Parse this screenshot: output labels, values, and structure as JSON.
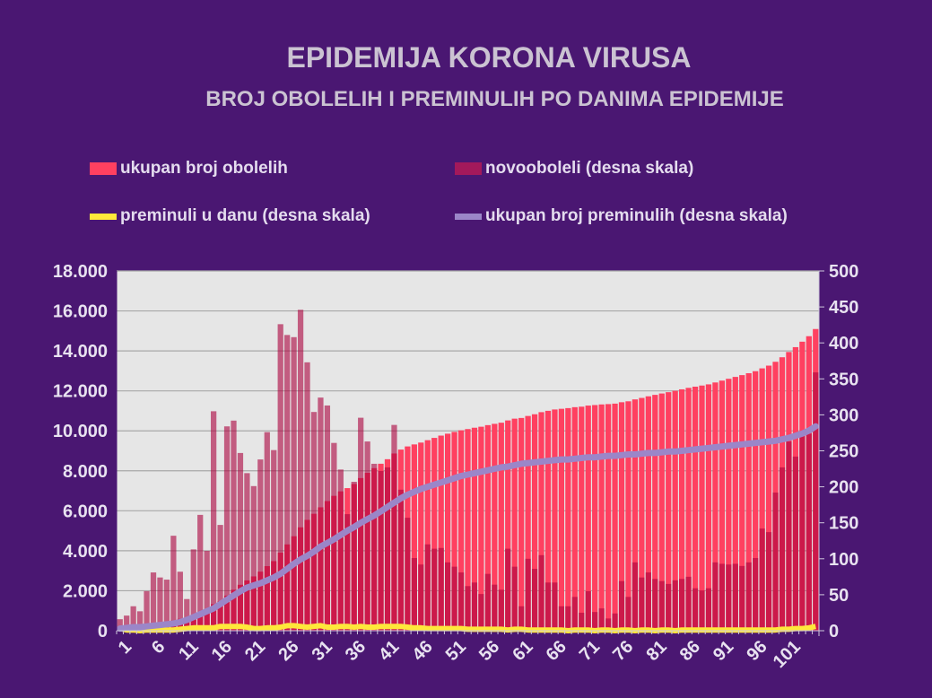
{
  "chart_data": {
    "type": "bar",
    "title": "EPIDEMIJA KORONA VIRUSA",
    "subtitle": "BROJ OBOLELIH I PREMINULIH PO DANIMA EPIDEMIJE",
    "legend_position": "top",
    "grid": true,
    "x": {
      "range": [
        1,
        105
      ],
      "tick_step": 5,
      "ticks": [
        "1",
        "6",
        "11",
        "16",
        "21",
        "26",
        "31",
        "36",
        "41",
        "46",
        "51",
        "56",
        "61",
        "66",
        "71",
        "76",
        "81",
        "86",
        "91",
        "96",
        "101"
      ]
    },
    "y_left": {
      "range": [
        0,
        18000
      ],
      "ticks": [
        "0",
        "2.000",
        "4.000",
        "6.000",
        "8.000",
        "10.000",
        "12.000",
        "14.000",
        "16.000",
        "18.000"
      ]
    },
    "y_right": {
      "range": [
        0,
        500
      ],
      "ticks": [
        "0",
        "50",
        "100",
        "150",
        "200",
        "250",
        "300",
        "350",
        "400",
        "450",
        "500"
      ]
    },
    "series": [
      {
        "name": "ukupan broj obolelih",
        "axis": "left",
        "type": "bar",
        "color": "#ff4060",
        "values": [
          16,
          37,
          71,
          98,
          153,
          234,
          308,
          379,
          511,
          593,
          637,
          750,
          911,
          1022,
          1327,
          1474,
          1758,
          2050,
          2297,
          2516,
          2717,
          2955,
          3231,
          3482,
          3908,
          4319,
          4727,
          5173,
          5546,
          5850,
          6174,
          6487,
          6748,
          6972,
          7134,
          7341,
          7637,
          7900,
          8132,
          8354,
          8581,
          8867,
          9063,
          9220,
          9321,
          9413,
          9533,
          9647,
          9762,
          9857,
          9946,
          10027,
          10089,
          10156,
          10207,
          10286,
          10350,
          10407,
          10521,
          10610,
          10644,
          10744,
          10830,
          10935,
          11002,
          11069,
          11103,
          11137,
          11184,
          11209,
          11264,
          11290,
          11321,
          11338,
          11362,
          11431,
          11478,
          11573,
          11647,
          11728,
          11800,
          11869,
          11934,
          12004,
          12076,
          12151,
          12210,
          12266,
          12325,
          12420,
          12513,
          12605,
          12698,
          12788,
          12883,
          12984,
          13126,
          13263,
          13455,
          13682,
          13945,
          14187,
          14461,
          14735,
          15094
        ]
      },
      {
        "name": "novooboleli (desna skala)",
        "axis": "right",
        "type": "bar",
        "color": "#aa003c",
        "values": [
          16,
          21,
          34,
          27,
          55,
          81,
          74,
          71,
          132,
          82,
          44,
          113,
          161,
          111,
          305,
          147,
          284,
          292,
          247,
          219,
          201,
          238,
          276,
          251,
          426,
          411,
          408,
          446,
          373,
          304,
          324,
          313,
          261,
          224,
          162,
          207,
          296,
          263,
          232,
          222,
          227,
          286,
          196,
          157,
          101,
          92,
          120,
          114,
          115,
          95,
          89,
          81,
          62,
          67,
          51,
          79,
          64,
          57,
          114,
          89,
          34,
          100,
          86,
          105,
          67,
          67,
          34,
          34,
          47,
          25,
          55,
          26,
          31,
          17,
          24,
          69,
          47,
          95,
          74,
          81,
          72,
          69,
          65,
          70,
          72,
          75,
          59,
          56,
          59,
          95,
          93,
          92,
          93,
          90,
          95,
          101,
          142,
          137,
          192,
          227,
          263,
          242,
          274,
          274,
          359
        ]
      },
      {
        "name": "preminuli u danu (desna skala)",
        "axis": "right",
        "type": "line",
        "color": "#ffe83a",
        "values": [
          3,
          1,
          1,
          0,
          1,
          1,
          1,
          1,
          1,
          2,
          3,
          4,
          4,
          4,
          4,
          6,
          6,
          6,
          6,
          5,
          3,
          3,
          4,
          4,
          5,
          7,
          7,
          6,
          5,
          6,
          7,
          5,
          5,
          6,
          6,
          5,
          6,
          5,
          5,
          6,
          6,
          6,
          6,
          5,
          4,
          4,
          3,
          3,
          3,
          3,
          3,
          3,
          2,
          2,
          2,
          2,
          2,
          2,
          1,
          2,
          2,
          1,
          1,
          1,
          1,
          1,
          1,
          0,
          1,
          1,
          1,
          0,
          1,
          1,
          0,
          1,
          1,
          0,
          1,
          1,
          0,
          1,
          1,
          0,
          1,
          1,
          1,
          1,
          1,
          1,
          1,
          1,
          1,
          1,
          1,
          1,
          1,
          1,
          1,
          2,
          2,
          3,
          3,
          4,
          6
        ]
      },
      {
        "name": "ukupan broj preminulih (desna skala)",
        "axis": "right",
        "type": "line",
        "color": "#9b86c8",
        "values": [
          3,
          4,
          5,
          5,
          6,
          7,
          8,
          9,
          10,
          12,
          15,
          19,
          23,
          27,
          31,
          37,
          43,
          49,
          55,
          60,
          63,
          66,
          70,
          74,
          79,
          86,
          93,
          99,
          104,
          110,
          117,
          122,
          127,
          133,
          139,
          144,
          150,
          155,
          160,
          166,
          172,
          178,
          184,
          189,
          193,
          197,
          200,
          203,
          206,
          209,
          212,
          215,
          217,
          219,
          221,
          223,
          225,
          227,
          228,
          230,
          232,
          233,
          234,
          235,
          236,
          237,
          238,
          238,
          239,
          240,
          241,
          241,
          242,
          243,
          243,
          244,
          245,
          245,
          246,
          247,
          247,
          248,
          249,
          249,
          250,
          251,
          252,
          253,
          254,
          255,
          256,
          257,
          258,
          259,
          260,
          261,
          262,
          263,
          264,
          266,
          268,
          271,
          274,
          278,
          284
        ]
      }
    ]
  }
}
